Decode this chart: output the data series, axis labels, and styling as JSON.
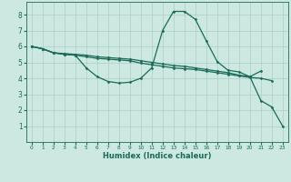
{
  "background_color": "#cce8e0",
  "grid_color": "#aacfc8",
  "line_color": "#1a6b5a",
  "xlabel": "Humidex (Indice chaleur)",
  "xlim": [
    -0.5,
    23.5
  ],
  "ylim": [
    0,
    8.8
  ],
  "xticks": [
    0,
    1,
    2,
    3,
    4,
    5,
    6,
    7,
    8,
    9,
    10,
    11,
    12,
    13,
    14,
    15,
    16,
    17,
    18,
    19,
    20,
    21,
    22,
    23
  ],
  "yticks": [
    1,
    2,
    3,
    4,
    5,
    6,
    7,
    8
  ],
  "series": [
    {
      "x": [
        0,
        1,
        2,
        3,
        4,
        5,
        6,
        7,
        8,
        9,
        10,
        11,
        12,
        13,
        14,
        15,
        16,
        17,
        18,
        19,
        20,
        21
      ],
      "y": [
        6.0,
        5.85,
        5.6,
        5.55,
        5.5,
        5.45,
        5.35,
        5.3,
        5.25,
        5.2,
        5.1,
        5.0,
        4.9,
        4.8,
        4.75,
        4.65,
        4.55,
        4.45,
        4.35,
        4.2,
        4.1,
        4.45
      ]
    },
    {
      "x": [
        0,
        1,
        2,
        3,
        4,
        5,
        6,
        7,
        8,
        9,
        10,
        11,
        12,
        13,
        14,
        15,
        16,
        17,
        18,
        19,
        20,
        21,
        22,
        23
      ],
      "y": [
        6.0,
        5.85,
        5.6,
        5.5,
        5.45,
        4.65,
        4.1,
        3.8,
        3.7,
        3.75,
        4.0,
        4.65,
        7.0,
        8.2,
        8.2,
        7.7,
        6.35,
        5.05,
        4.5,
        4.4,
        4.1,
        2.6,
        2.2,
        1.0
      ]
    },
    {
      "x": [
        0,
        1,
        2,
        3,
        4,
        5,
        6,
        7,
        8,
        9,
        10,
        11,
        12,
        13,
        14,
        15,
        16,
        17,
        18,
        19,
        20,
        21,
        22
      ],
      "y": [
        6.0,
        5.85,
        5.6,
        5.5,
        5.45,
        5.35,
        5.25,
        5.2,
        5.15,
        5.1,
        4.95,
        4.85,
        4.75,
        4.65,
        4.6,
        4.55,
        4.45,
        4.35,
        4.25,
        4.15,
        4.05,
        4.0,
        3.85
      ]
    }
  ]
}
